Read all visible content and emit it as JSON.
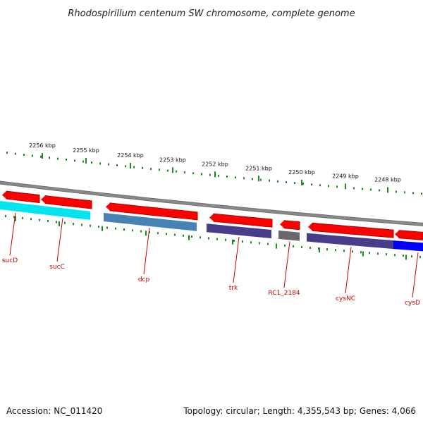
{
  "title": "Rhodospirillum centenum SW chromosome, complete genome",
  "accession": "Accession: NC_011420",
  "topology": "Topology: circular; Length: 4,355,543 bp; Genes: 4,066",
  "colors": {
    "backbone": "#8a8a8a",
    "forward_arrow": "#ff0000",
    "tick": "#1a8a1a",
    "label": "#cc0000"
  },
  "kbp_labels": [
    "2256 kbp",
    "2255 kbp",
    "2254 kbp",
    "2253 kbp",
    "2252 kbp",
    "2251 kbp",
    "2250 kbp",
    "2249 kbp",
    "2248 kbp"
  ],
  "genes": [
    {
      "name": "sucD",
      "color": "#00e5ee"
    },
    {
      "name": "sucC",
      "color": "#00e5ee"
    },
    {
      "name": "dcp",
      "color": "#4682b4"
    },
    {
      "name": "trk",
      "color": "#483d8b"
    },
    {
      "name": "RC1_2184",
      "color": "#696969"
    },
    {
      "name": "cysNC",
      "color": "#483d8b"
    },
    {
      "name": "cysD",
      "color": "#0000ff"
    }
  ]
}
